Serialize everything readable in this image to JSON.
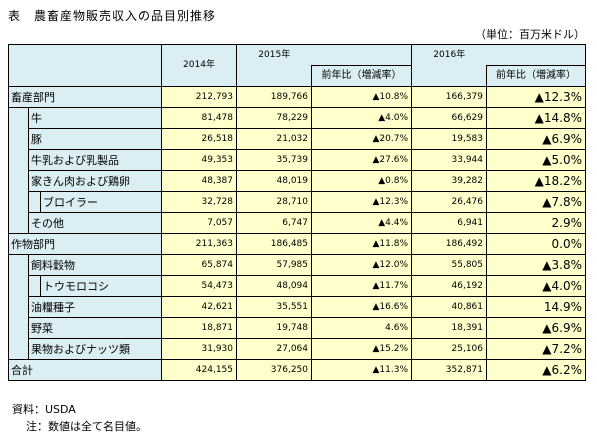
{
  "title": "表　農畜産物販売収入の品目別推移",
  "unit": "（単位：百万米ドル）",
  "headers": {
    "y2014": "2014年",
    "y2015": "2015年",
    "yoy2015": "前年比（増減率）",
    "y2016": "2016年",
    "yoy2016": "前年比（増減率）"
  },
  "rows": [
    {
      "label": "畜産部門",
      "v2014": "212,793",
      "v2015": "189,766",
      "yoy2015": "▲10.8%",
      "v2016": "166,379",
      "yoy2016": "▲12.3%"
    },
    {
      "label": "牛",
      "v2014": "81,478",
      "v2015": "78,229",
      "yoy2015": "▲4.0%",
      "v2016": "66,629",
      "yoy2016": "▲14.8%"
    },
    {
      "label": "豚",
      "v2014": "26,518",
      "v2015": "21,032",
      "yoy2015": "▲20.7%",
      "v2016": "19,583",
      "yoy2016": "▲6.9%"
    },
    {
      "label": "牛乳および乳製品",
      "v2014": "49,353",
      "v2015": "35,739",
      "yoy2015": "▲27.6%",
      "v2016": "33,944",
      "yoy2016": "▲5.0%"
    },
    {
      "label": "家きん肉および鶏卵",
      "v2014": "48,387",
      "v2015": "48,019",
      "yoy2015": "▲0.8%",
      "v2016": "39,282",
      "yoy2016": "▲18.2%"
    },
    {
      "label": "ブロイラー",
      "v2014": "32,728",
      "v2015": "28,710",
      "yoy2015": "▲12.3%",
      "v2016": "26,476",
      "yoy2016": "▲7.8%"
    },
    {
      "label": "その他",
      "v2014": "7,057",
      "v2015": "6,747",
      "yoy2015": "▲4.4%",
      "v2016": "6,941",
      "yoy2016": "2.9%"
    },
    {
      "label": "作物部門",
      "v2014": "211,363",
      "v2015": "186,485",
      "yoy2015": "▲11.8%",
      "v2016": "186,492",
      "yoy2016": "0.0%"
    },
    {
      "label": "飼料穀物",
      "v2014": "65,874",
      "v2015": "57,985",
      "yoy2015": "▲12.0%",
      "v2016": "55,805",
      "yoy2016": "▲3.8%"
    },
    {
      "label": "トウモロコシ",
      "v2014": "54,473",
      "v2015": "48,094",
      "yoy2015": "▲11.7%",
      "v2016": "46,192",
      "yoy2016": "▲4.0%"
    },
    {
      "label": "油糧種子",
      "v2014": "42,621",
      "v2015": "35,551",
      "yoy2015": "▲16.6%",
      "v2016": "40,861",
      "yoy2016": "14.9%"
    },
    {
      "label": "野菜",
      "v2014": "18,871",
      "v2015": "19,748",
      "yoy2015": "4.6%",
      "v2016": "18,391",
      "yoy2016": "▲6.9%"
    },
    {
      "label": "果物およびナッツ類",
      "v2014": "31,930",
      "v2015": "27,064",
      "yoy2015": "▲15.2%",
      "v2016": "25,106",
      "yoy2016": "▲7.2%"
    },
    {
      "label": "合計",
      "v2014": "424,155",
      "v2015": "376,250",
      "yoy2015": "▲11.3%",
      "v2016": "352,871",
      "yoy2016": "▲6.2%"
    }
  ],
  "notes": {
    "source": "資料：USDA",
    "note": "注：数値は全て名目値。"
  }
}
